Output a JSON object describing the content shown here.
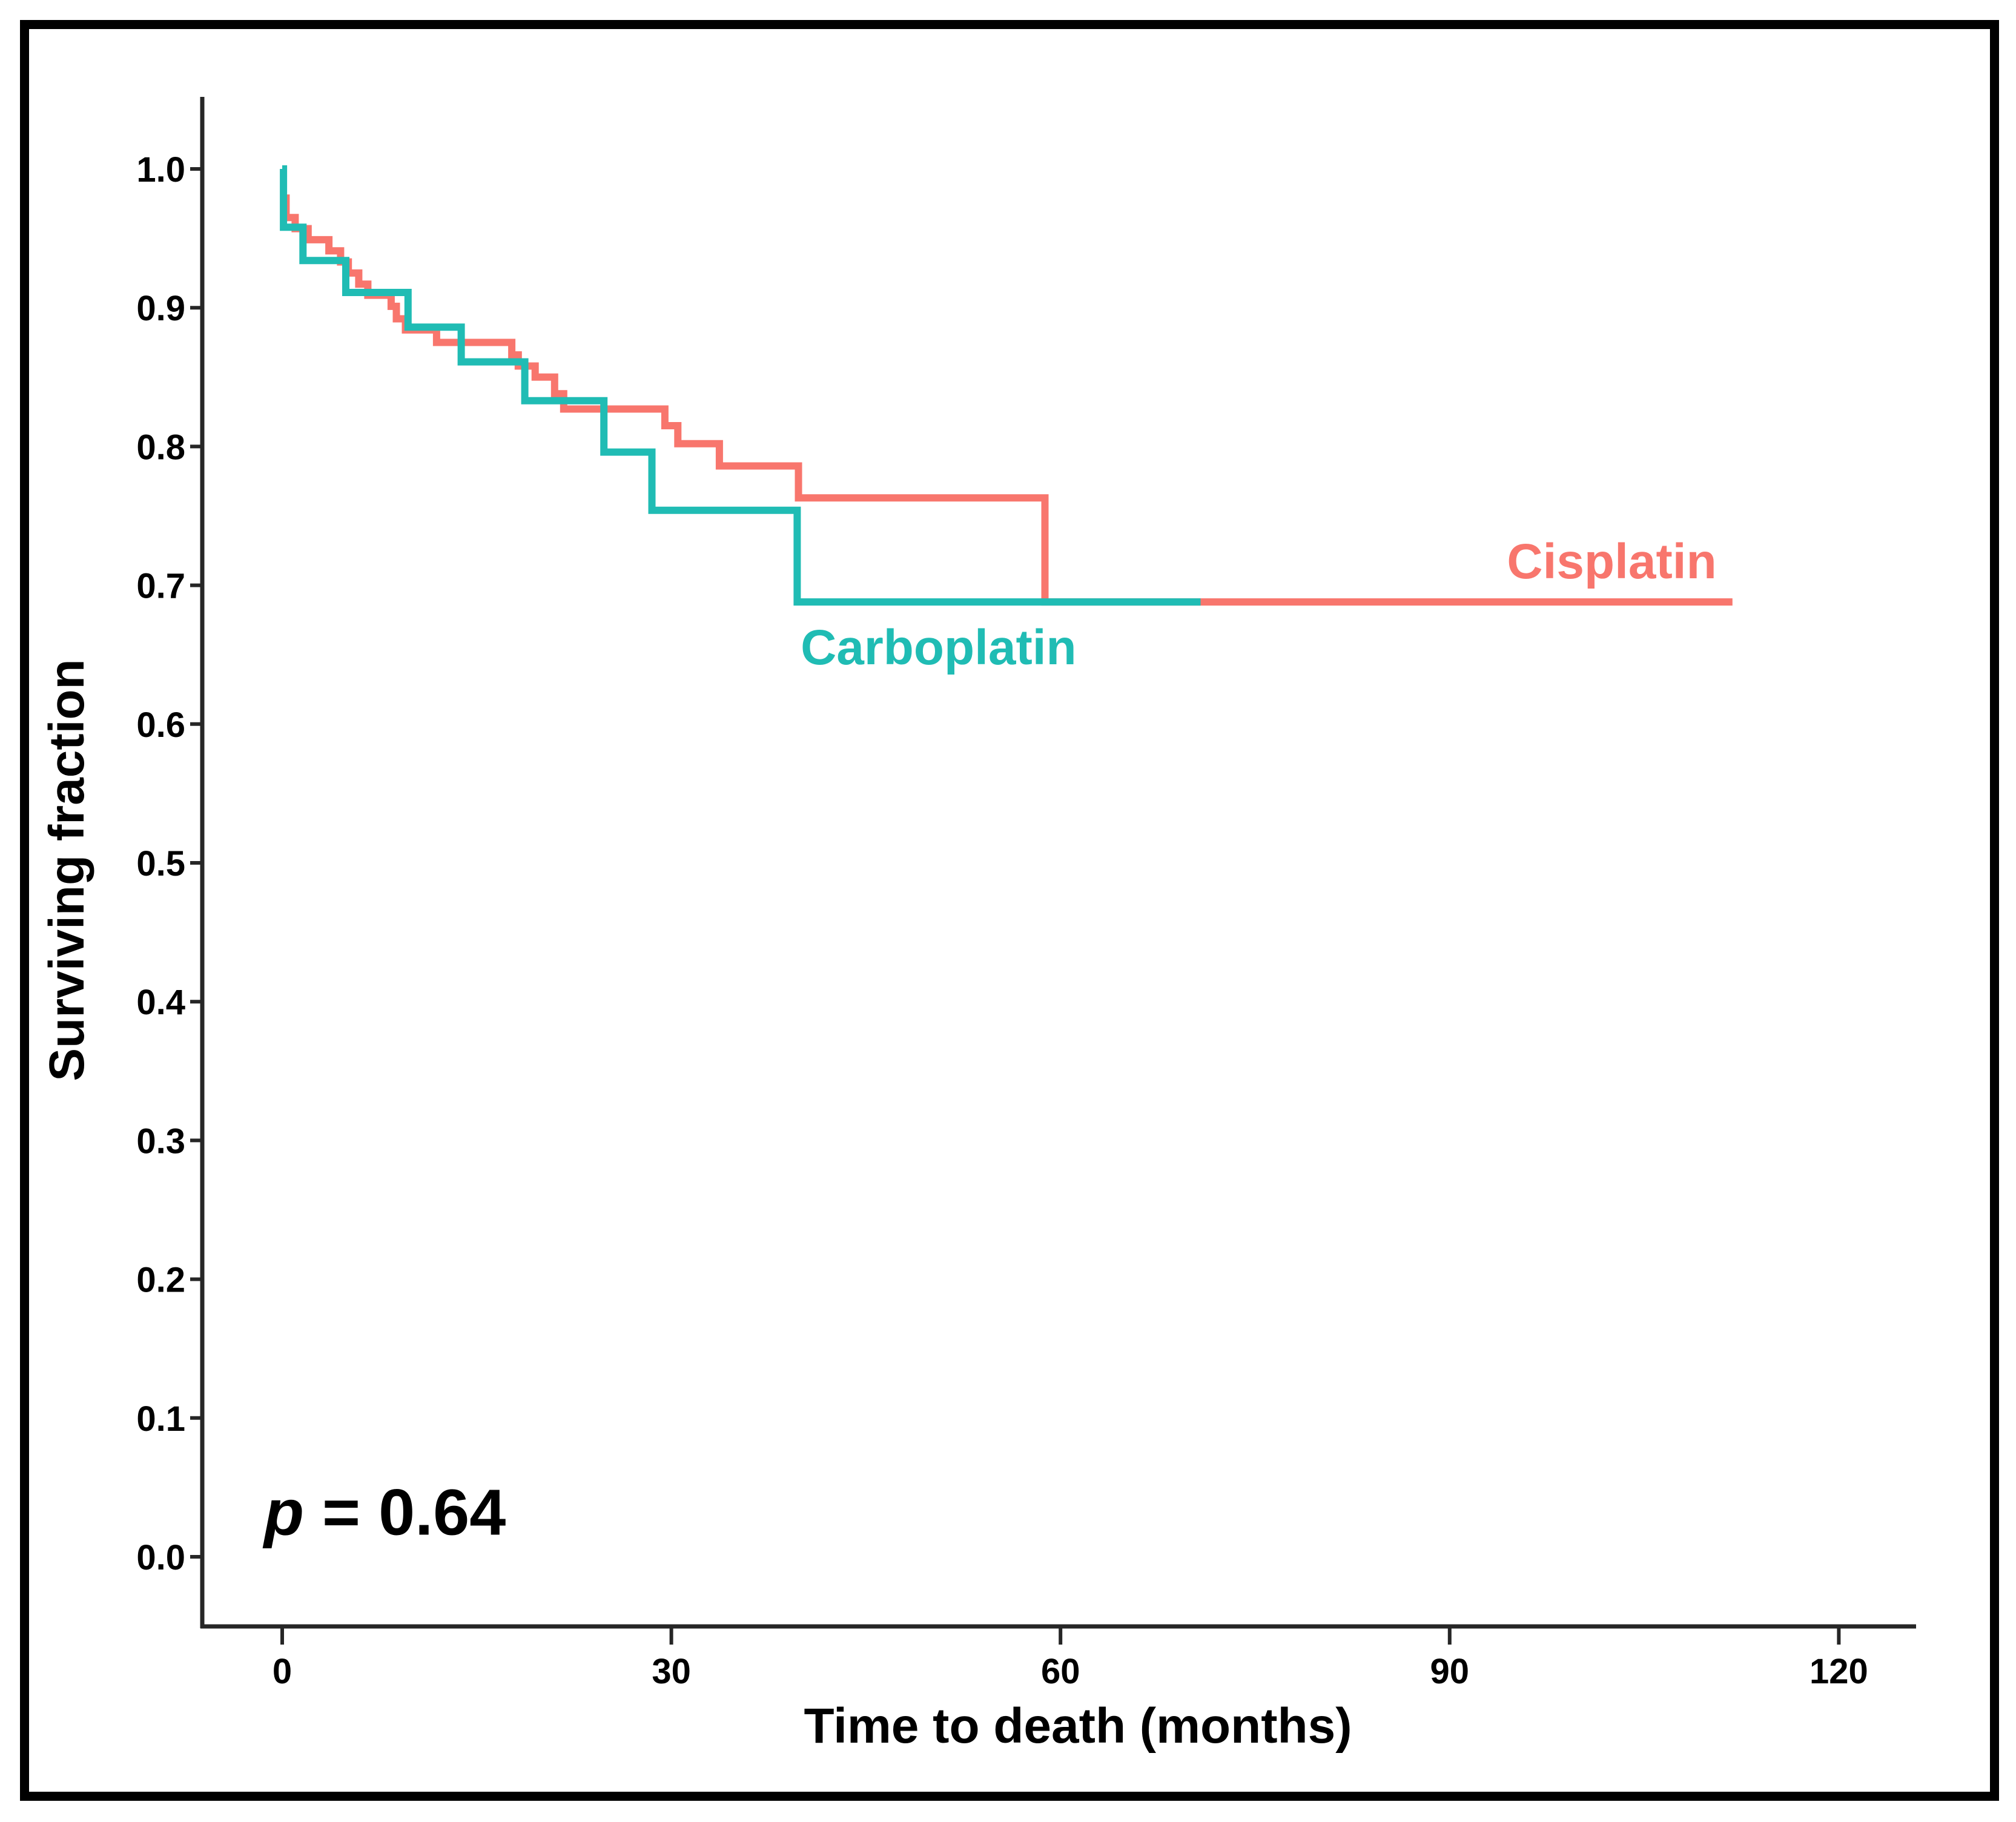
{
  "figure": {
    "background": "#ffffff",
    "border_color": "#000000"
  },
  "chart_data": {
    "type": "line",
    "subtype": "kaplan_meier_step_survival",
    "title": "",
    "xlabel": "Time to death (months)",
    "ylabel": "Surviving fraction",
    "xlim": [
      0,
      120
    ],
    "ylim": [
      0.0,
      1.0
    ],
    "grid": false,
    "legend_position": "inline_curve_labels",
    "x_ticks": [
      {
        "v": 0,
        "label": "0"
      },
      {
        "v": 30,
        "label": "30"
      },
      {
        "v": 60,
        "label": "60"
      },
      {
        "v": 90,
        "label": "90"
      },
      {
        "v": 120,
        "label": "120"
      }
    ],
    "y_ticks": [
      {
        "v": 0.0,
        "label": "0.0"
      },
      {
        "v": 0.1,
        "label": "0.1"
      },
      {
        "v": 0.2,
        "label": "0.2"
      },
      {
        "v": 0.3,
        "label": "0.3"
      },
      {
        "v": 0.4,
        "label": "0.4"
      },
      {
        "v": 0.5,
        "label": "0.5"
      },
      {
        "v": 0.6,
        "label": "0.6"
      },
      {
        "v": 0.7,
        "label": "0.7"
      },
      {
        "v": 0.8,
        "label": "0.8"
      },
      {
        "v": 0.9,
        "label": "0.9"
      },
      {
        "v": 1.0,
        "label": "1.0"
      }
    ],
    "annotation": {
      "italic_part": "p",
      "rest_part": " = 0.64",
      "t": -1.4,
      "s": 0.016
    },
    "series": [
      {
        "name": "Cisplatin",
        "color": "#F8766D",
        "label": {
          "text": "Cisplatin",
          "t": 102.5,
          "s": 0.705
        },
        "end_t": 111.8,
        "points": [
          [
            0.0,
            0.979
          ],
          [
            0.3,
            0.965
          ],
          [
            1.0,
            0.957
          ],
          [
            2.0,
            0.949
          ],
          [
            3.6,
            0.941
          ],
          [
            4.5,
            0.933
          ],
          [
            5.1,
            0.925
          ],
          [
            5.9,
            0.917
          ],
          [
            6.6,
            0.909
          ],
          [
            8.4,
            0.901
          ],
          [
            8.8,
            0.892
          ],
          [
            9.5,
            0.884
          ],
          [
            11.9,
            0.875
          ],
          [
            17.7,
            0.866
          ],
          [
            18.2,
            0.858
          ],
          [
            19.5,
            0.85
          ],
          [
            21.0,
            0.838
          ],
          [
            21.7,
            0.827
          ],
          [
            29.5,
            0.815
          ],
          [
            30.5,
            0.802
          ],
          [
            33.7,
            0.786
          ],
          [
            39.8,
            0.763
          ],
          [
            58.8,
            0.688
          ]
        ]
      },
      {
        "name": "Carboplatin",
        "color": "#20BCB4",
        "label": {
          "text": "Carboplatin",
          "t": 50.6,
          "s": 0.643
        },
        "end_t": 70.8,
        "points": [
          [
            0.0,
            1.0
          ],
          [
            0.1,
            0.958
          ],
          [
            1.6,
            0.934
          ],
          [
            4.9,
            0.911
          ],
          [
            9.7,
            0.886
          ],
          [
            13.8,
            0.861
          ],
          [
            18.7,
            0.833
          ],
          [
            24.8,
            0.796
          ],
          [
            28.5,
            0.754
          ],
          [
            39.7,
            0.688
          ]
        ]
      }
    ]
  }
}
